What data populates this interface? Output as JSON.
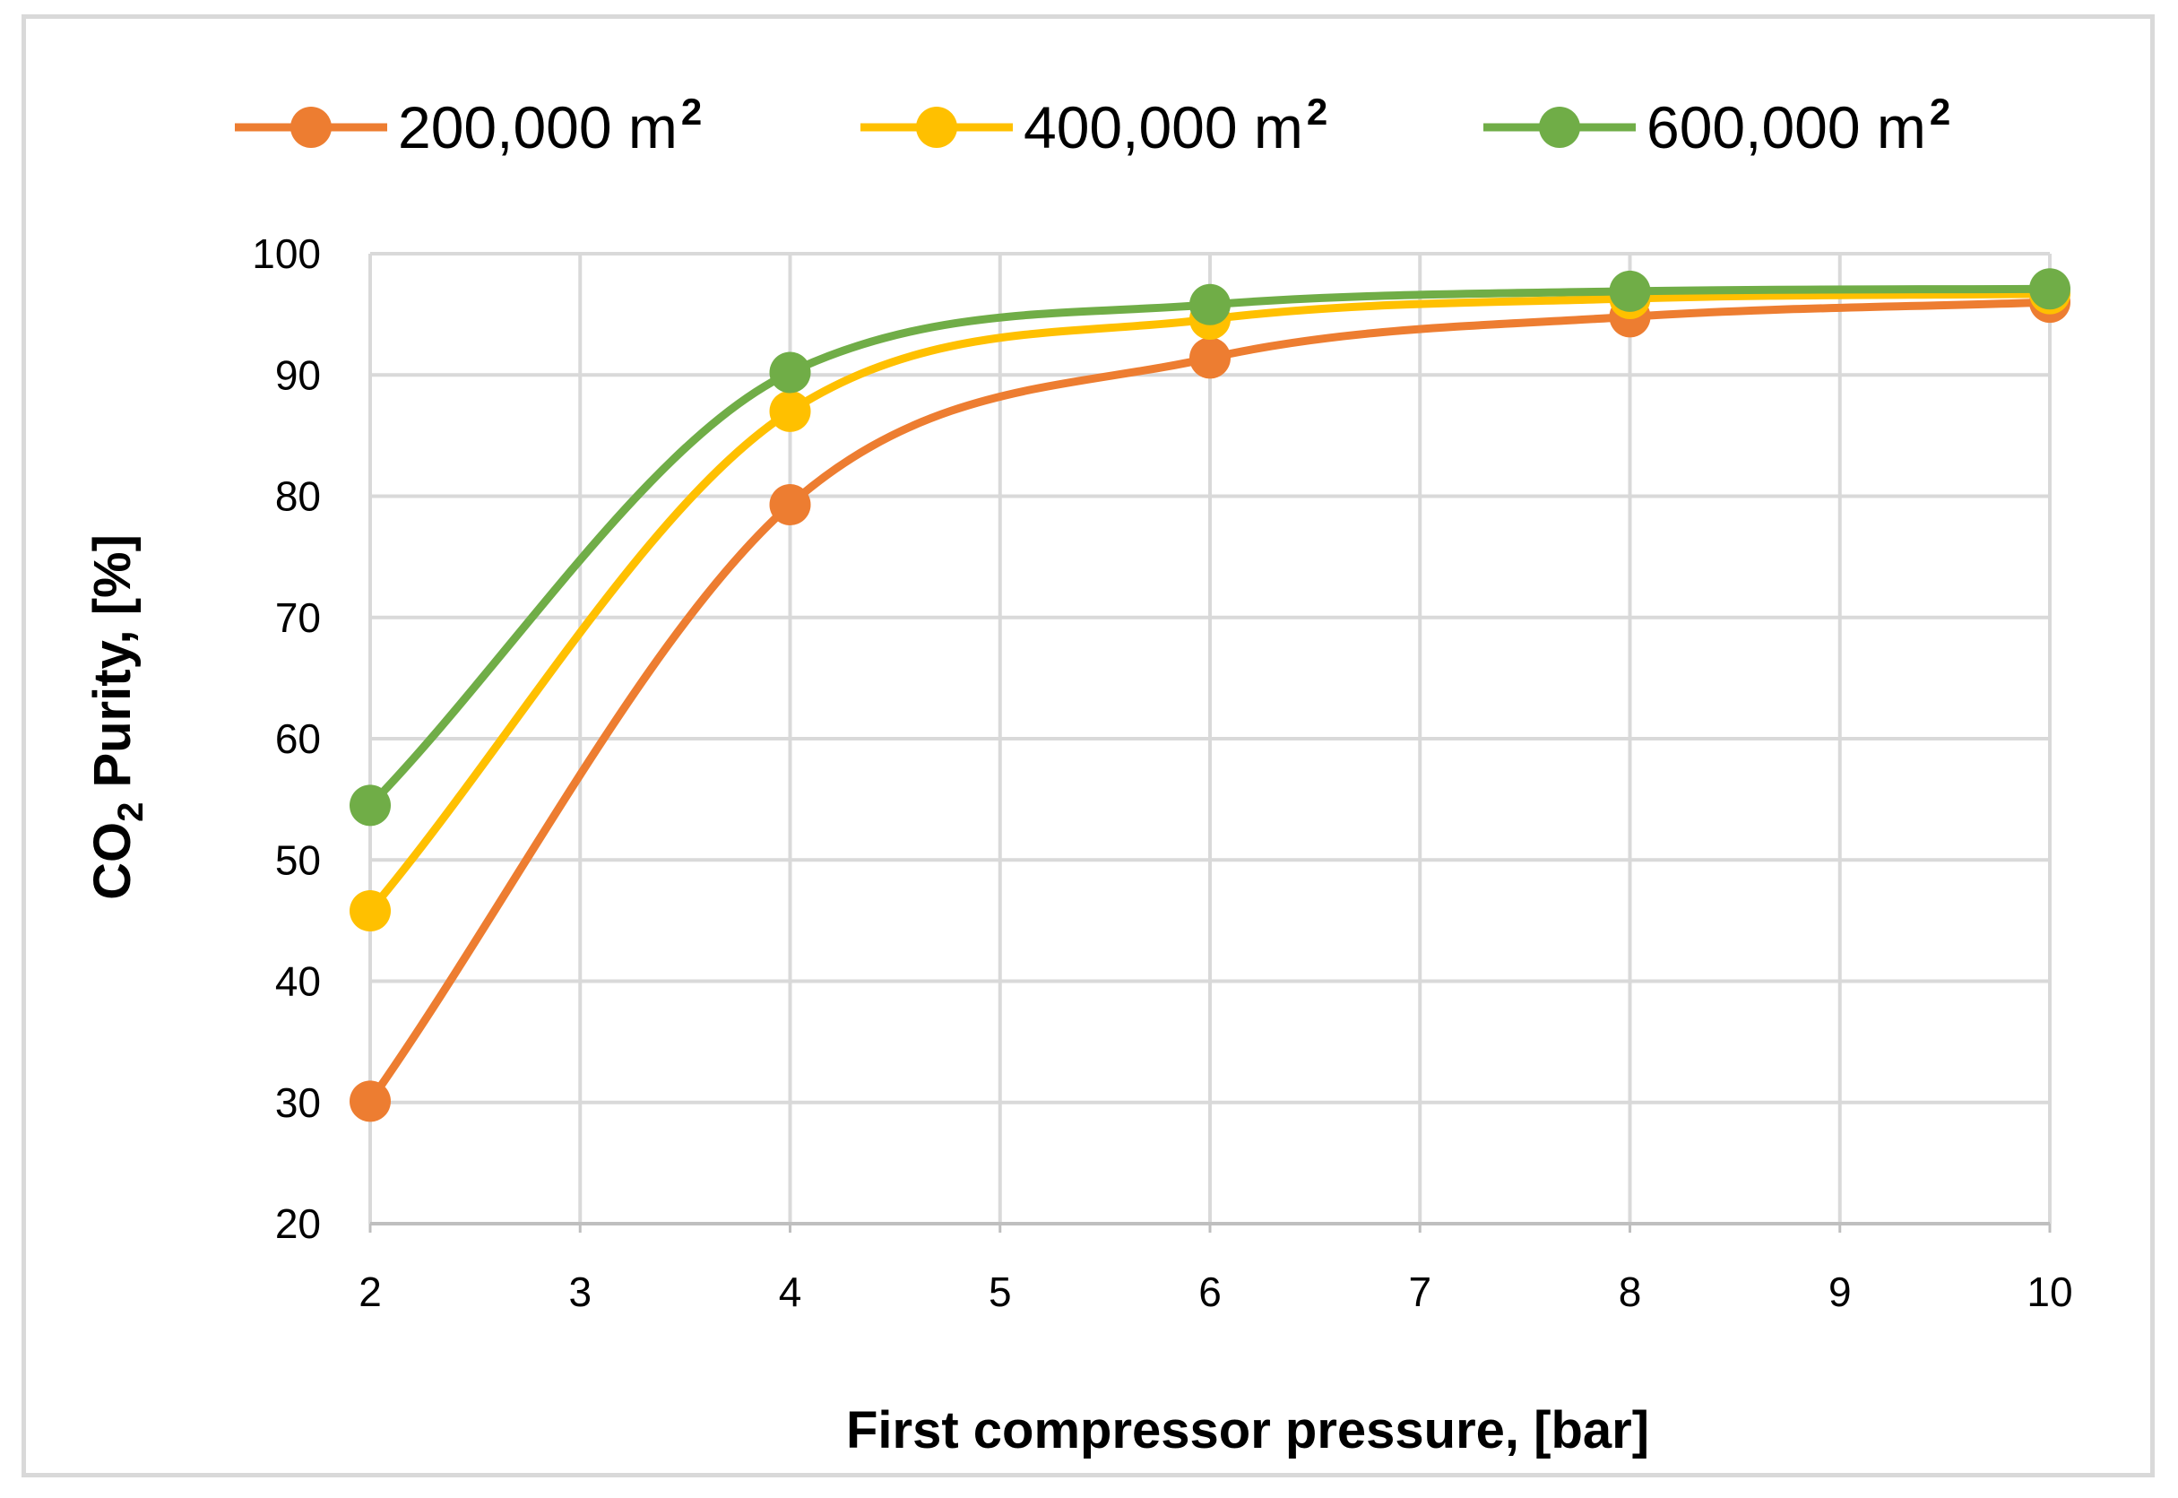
{
  "chart_data": {
    "type": "line",
    "smooth": true,
    "title": "",
    "xlabel": "First compressor pressure, [bar]",
    "ylabel": {
      "prefix": "CO",
      "subscript": "2",
      "suffix": " Purity, [%]"
    },
    "xlim": [
      2,
      10
    ],
    "ylim": [
      20,
      100
    ],
    "x_ticks": [
      "2",
      "3",
      "4",
      "5",
      "6",
      "7",
      "8",
      "9",
      "10"
    ],
    "y_ticks": [
      "20",
      "30",
      "40",
      "50",
      "60",
      "70",
      "80",
      "90",
      "100"
    ],
    "grid": true,
    "legend_position": "top",
    "x": [
      2,
      4,
      6,
      8,
      10
    ],
    "series": [
      {
        "name": "200,000 m",
        "unit_sup": "2",
        "color": "#ed7d31",
        "values": [
          30.1,
          79.3,
          91.4,
          94.8,
          96.0
        ]
      },
      {
        "name": "400,000 m",
        "unit_sup": "2",
        "color": "#ffc000",
        "values": [
          45.8,
          87.0,
          94.6,
          96.3,
          96.7
        ]
      },
      {
        "name": "600,000 m",
        "unit_sup": "2",
        "color": "#70ad47",
        "values": [
          54.5,
          90.2,
          95.8,
          96.9,
          97.1
        ]
      }
    ]
  }
}
